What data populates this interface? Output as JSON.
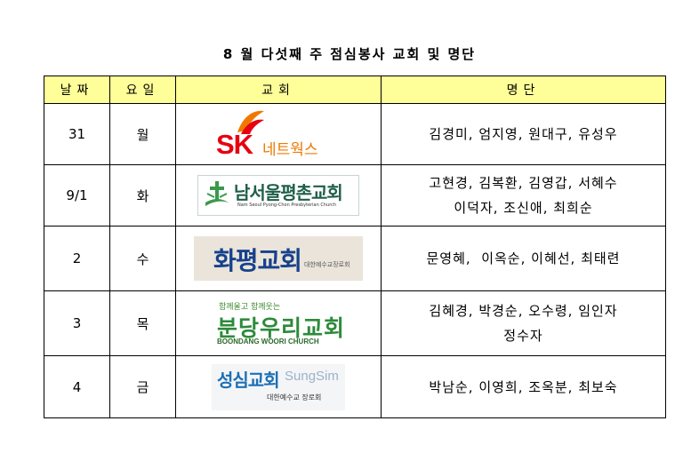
{
  "title": "8 월 다섯째 주 점심봉사 교회 및 명단",
  "headers": {
    "date": "날짜",
    "day": "요일",
    "church": "교회",
    "names": "명단"
  },
  "rows": [
    {
      "date": "31",
      "day": "월",
      "names_lines": [
        "김경미, 엄지영, 원대구, 유성우"
      ],
      "logo": {
        "mark": "SK",
        "text": "네트웍스"
      }
    },
    {
      "date": "9/1",
      "day": "화",
      "names_lines": [
        "고현경, 김복환, 김영갑, 서혜수",
        "이덕자, 조신애, 최희순"
      ],
      "logo": {
        "text": "남서울평촌교회",
        "subtext": "Nam Seoul Pyong-Chon Presbyterian Church"
      }
    },
    {
      "date": "2",
      "day": "수",
      "names_lines": [
        "문영혜,  이옥순, 이혜선, 최태련"
      ],
      "logo": {
        "text": "화평교회",
        "subtext": "대한예수교장로회"
      }
    },
    {
      "date": "3",
      "day": "목",
      "names_lines": [
        "김혜경, 박경순, 오수령, 임인자",
        "정수자"
      ],
      "logo": {
        "tagline": "함께울고 함께웃는",
        "text": "분당우리교회",
        "subtext": "BOONDANG WOORI CHURCH"
      }
    },
    {
      "date": "4",
      "day": "금",
      "names_lines": [
        "박남순, 이영희, 조옥분, 최보숙"
      ],
      "logo": {
        "text": "성심교회",
        "text_en": "SungSim",
        "subtext": "대한예수교 장로회"
      }
    }
  ],
  "colors": {
    "header_bg": "#ffff99",
    "sk_red": "#e60012",
    "sk_orange": "#f07800"
  }
}
